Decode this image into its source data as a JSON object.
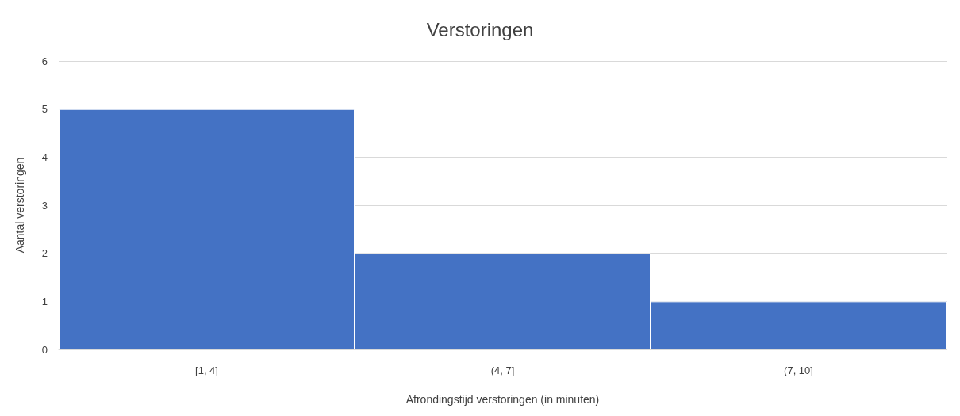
{
  "chart_data": {
    "type": "bar",
    "title": "Verstoringen",
    "xlabel": "Afrondingstijd verstoringen (in minuten)",
    "ylabel": "Aantal verstoringen",
    "categories": [
      "[1, 4]",
      "(4, 7]",
      "(7, 10]"
    ],
    "values": [
      5,
      2,
      1
    ],
    "color": "#4472c4",
    "ylim": [
      0,
      6
    ],
    "yticks": [
      0,
      1,
      2,
      3,
      4,
      5,
      6
    ],
    "grid": "y"
  }
}
